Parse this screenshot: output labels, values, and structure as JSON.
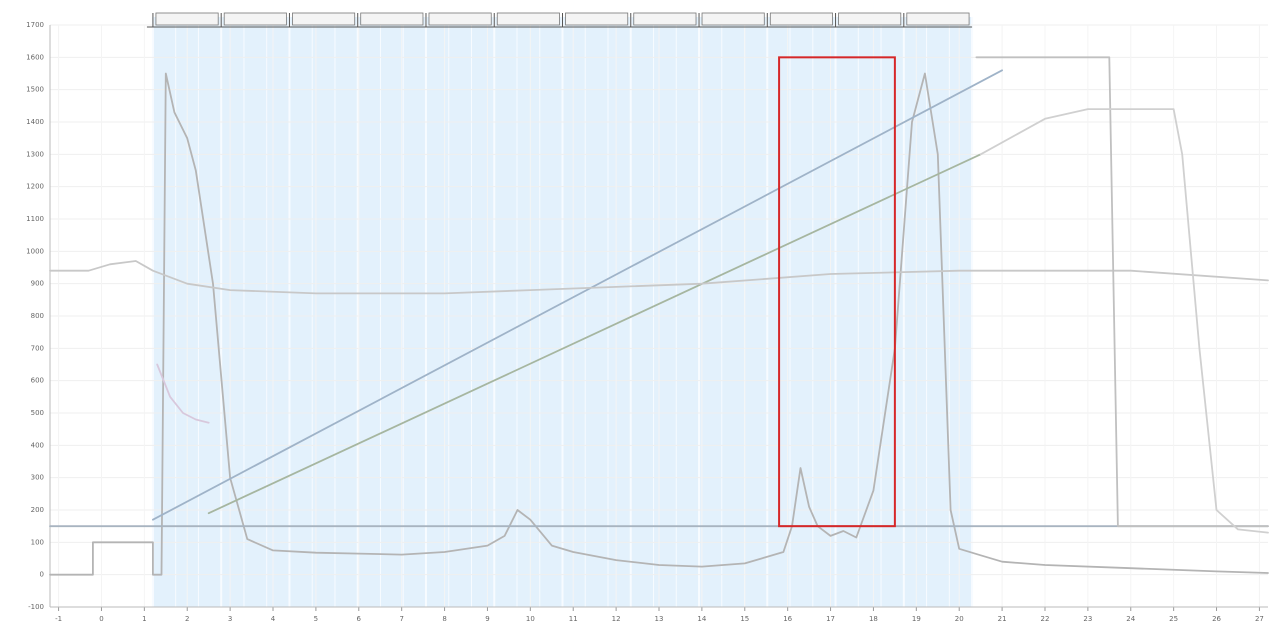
{
  "chart_data": {
    "type": "line",
    "title": "",
    "xlabel": "",
    "ylabel": "",
    "grid": true,
    "x_axis": {
      "ticks": [
        -1,
        0,
        1,
        2,
        3,
        4,
        5,
        6,
        7,
        8,
        9,
        10,
        11,
        12,
        13,
        14,
        15,
        16,
        17,
        18,
        19,
        20,
        21,
        22,
        23,
        24,
        25,
        26,
        27
      ]
    },
    "y_axis": {
      "ticks": [
        -100,
        0,
        100,
        200,
        300,
        400,
        500,
        600,
        700,
        800,
        900,
        1000,
        1100,
        1200,
        1300,
        1400,
        1500,
        1600,
        1700
      ]
    },
    "xlim": [
      -1.2,
      27.2
    ],
    "ylim": [
      -100,
      1700
    ],
    "fractions": {
      "x_start": 1.2,
      "x_end": 20.3,
      "labels": [
        "",
        "",
        "",
        "",
        "",
        "",
        "",
        "",
        "",
        "",
        "",
        ""
      ]
    },
    "highlight_box": {
      "x_start": 15.8,
      "x_end": 18.5,
      "y_min": 150,
      "y_max": 1600,
      "color": "#d62728"
    },
    "colors": {
      "shade": "#e3f1fc",
      "box": "#d62728"
    },
    "series": [
      {
        "name": "",
        "color": "#b4b4b4",
        "points": [
          [
            -1.2,
            0
          ],
          [
            -0.2,
            0
          ],
          [
            -0.2,
            100
          ],
          [
            1.2,
            100
          ],
          [
            1.2,
            0
          ],
          [
            1.4,
            0
          ],
          [
            1.5,
            1550
          ],
          [
            1.7,
            1430
          ],
          [
            2,
            1350
          ],
          [
            2.2,
            1250
          ],
          [
            2.6,
            900
          ],
          [
            3,
            300
          ],
          [
            3.4,
            110
          ],
          [
            4,
            75
          ],
          [
            5,
            68
          ],
          [
            6,
            65
          ],
          [
            7,
            62
          ],
          [
            8,
            70
          ],
          [
            9,
            90
          ],
          [
            9.4,
            120
          ],
          [
            9.7,
            200
          ],
          [
            10,
            170
          ],
          [
            10.5,
            90
          ],
          [
            11,
            70
          ],
          [
            12,
            45
          ],
          [
            13,
            30
          ],
          [
            14,
            25
          ],
          [
            15,
            35
          ],
          [
            15.9,
            70
          ],
          [
            16.1,
            150
          ],
          [
            16.3,
            330
          ],
          [
            16.5,
            210
          ],
          [
            16.7,
            150
          ],
          [
            17,
            120
          ],
          [
            17.3,
            135
          ],
          [
            17.6,
            115
          ],
          [
            18,
            260
          ],
          [
            18.5,
            700
          ],
          [
            18.9,
            1400
          ],
          [
            19.2,
            1550
          ],
          [
            19.5,
            1300
          ],
          [
            19.8,
            200
          ],
          [
            20,
            80
          ],
          [
            20.5,
            60
          ],
          [
            21,
            40
          ],
          [
            22,
            30
          ],
          [
            24,
            20
          ],
          [
            26,
            10
          ],
          [
            27.2,
            5
          ]
        ]
      },
      {
        "name": "",
        "color": "#a8b4c0",
        "points": [
          [
            -1.2,
            150
          ],
          [
            27.2,
            150
          ]
        ]
      },
      {
        "name": "",
        "color": "#9fb3c8",
        "points": [
          [
            1.2,
            170
          ],
          [
            21,
            1560
          ]
        ]
      },
      {
        "name": "",
        "color": "#a6b6a0",
        "points": [
          [
            2.5,
            190
          ],
          [
            20.5,
            1300
          ]
        ]
      },
      {
        "name": "",
        "color": "#c8c8c8",
        "points": [
          [
            -1.2,
            940
          ],
          [
            -0.3,
            940
          ],
          [
            0.2,
            960
          ],
          [
            0.8,
            970
          ],
          [
            1.2,
            940
          ],
          [
            2,
            900
          ],
          [
            3,
            880
          ],
          [
            5,
            870
          ],
          [
            8,
            870
          ],
          [
            10,
            880
          ],
          [
            14,
            900
          ],
          [
            17,
            930
          ],
          [
            20,
            940
          ],
          [
            24,
            940
          ],
          [
            27.2,
            910
          ]
        ]
      },
      {
        "name": "",
        "color": "#c0c0c0",
        "points": [
          [
            20.4,
            1600
          ],
          [
            23.5,
            1600
          ],
          [
            23.7,
            150
          ],
          [
            27.2,
            150
          ]
        ]
      },
      {
        "name": "",
        "color": "#d0d0d0",
        "points": [
          [
            20.5,
            1300
          ],
          [
            22,
            1410
          ],
          [
            23,
            1440
          ],
          [
            25,
            1440
          ],
          [
            25.2,
            1300
          ],
          [
            25.6,
            700
          ],
          [
            26,
            200
          ],
          [
            26.5,
            140
          ],
          [
            27.2,
            130
          ]
        ]
      },
      {
        "name": "",
        "color": "#d8c8dc",
        "points": [
          [
            1.3,
            650
          ],
          [
            1.6,
            550
          ],
          [
            1.9,
            500
          ],
          [
            2.2,
            480
          ],
          [
            2.5,
            470
          ]
        ]
      }
    ]
  }
}
